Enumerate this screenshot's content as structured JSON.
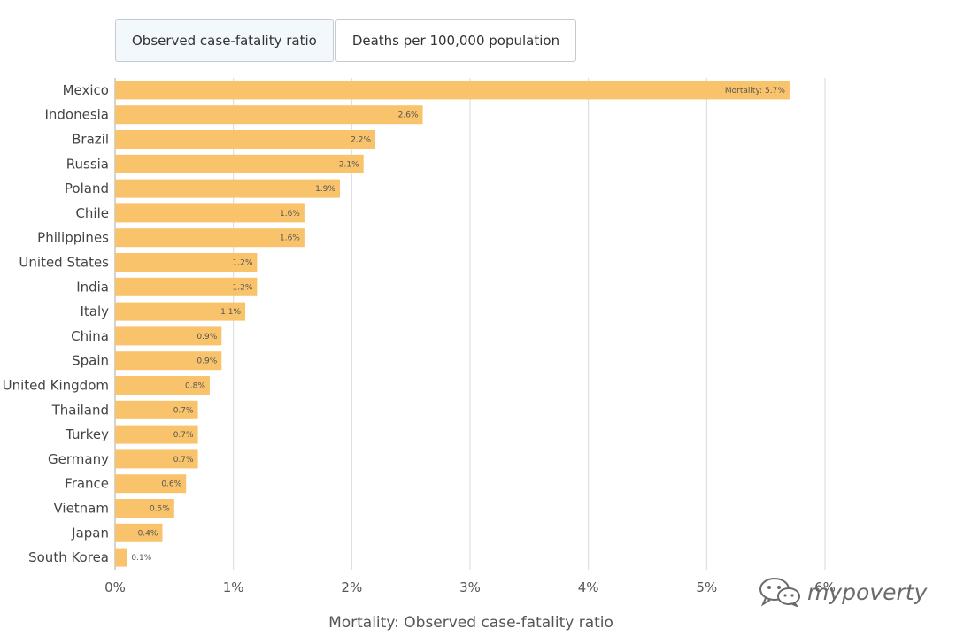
{
  "tabs": [
    {
      "label": "Observed case-fatality ratio",
      "active": true
    },
    {
      "label": "Deaths per 100,000 population",
      "active": false
    }
  ],
  "watermark": {
    "text": "mypoverty",
    "icon": "wechat-icon"
  },
  "colors": {
    "bar": "#f8c36b",
    "grid": "#dadada",
    "axis": "#aaaaaa"
  },
  "chart_data": {
    "type": "bar",
    "orientation": "horizontal",
    "xlabel": "Mortality: Observed case-fatality ratio",
    "xlim": [
      0,
      6
    ],
    "xticks": [
      "0%",
      "1%",
      "2%",
      "3%",
      "4%",
      "5%",
      "6%"
    ],
    "grid": true,
    "categories": [
      "Mexico",
      "Indonesia",
      "Brazil",
      "Russia",
      "Poland",
      "Chile",
      "Philippines",
      "United States",
      "India",
      "Italy",
      "China",
      "Spain",
      "United Kingdom",
      "Thailand",
      "Turkey",
      "Germany",
      "France",
      "Vietnam",
      "Japan",
      "South Korea"
    ],
    "values": [
      5.7,
      2.6,
      2.2,
      2.1,
      1.9,
      1.6,
      1.6,
      1.2,
      1.2,
      1.1,
      0.9,
      0.9,
      0.8,
      0.7,
      0.7,
      0.7,
      0.6,
      0.5,
      0.4,
      0.1
    ],
    "data_labels": [
      "Mortality: 5.7%",
      "2.6%",
      "2.2%",
      "2.1%",
      "1.9%",
      "1.6%",
      "1.6%",
      "1.2%",
      "1.2%",
      "1.1%",
      "0.9%",
      "0.9%",
      "0.8%",
      "0.7%",
      "0.7%",
      "0.7%",
      "0.6%",
      "0.5%",
      "0.4%",
      "0.1%"
    ]
  }
}
